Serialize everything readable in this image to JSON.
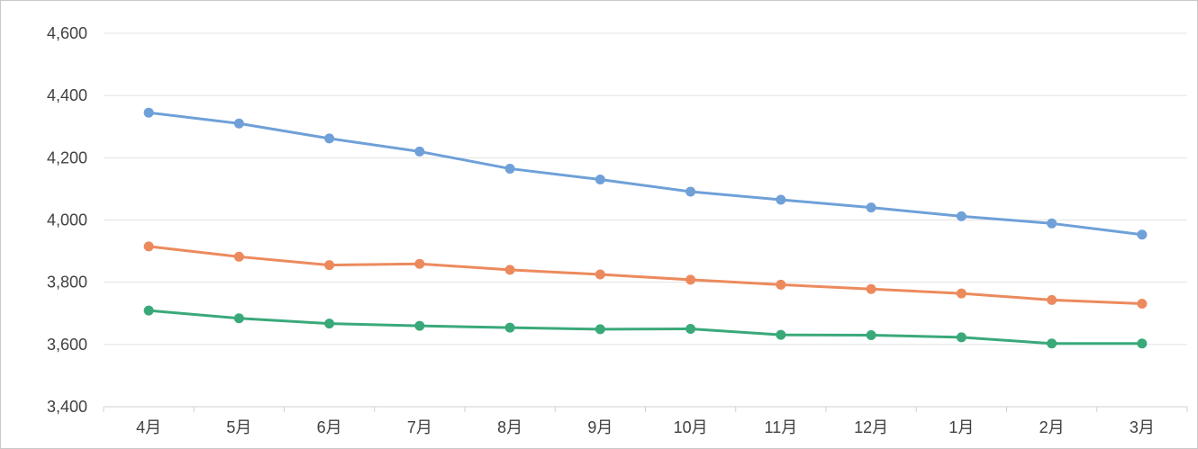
{
  "chart_data": {
    "type": "line",
    "title": "",
    "xlabel": "",
    "ylabel": "",
    "categories": [
      "4月",
      "5月",
      "6月",
      "7月",
      "8月",
      "9月",
      "10月",
      "11月",
      "12月",
      "1月",
      "2月",
      "3月"
    ],
    "ylim": [
      3400,
      4600
    ],
    "yticks": [
      3400,
      3600,
      3800,
      4000,
      4200,
      4400,
      4600
    ],
    "ytick_labels": [
      "3,400",
      "3,600",
      "3,800",
      "4,000",
      "4,200",
      "4,400",
      "4,600"
    ],
    "grid": true,
    "legend": "none",
    "series": [
      {
        "color": "#6fa0d8",
        "values": [
          4345,
          4310,
          4262,
          4220,
          4165,
          4130,
          4091,
          4065,
          4040,
          4012,
          3989,
          3953
        ]
      },
      {
        "color": "#ec8a5d",
        "values": [
          3915,
          3882,
          3855,
          3859,
          3840,
          3825,
          3808,
          3792,
          3778,
          3764,
          3743,
          3731
        ]
      },
      {
        "color": "#3aa97a",
        "values": [
          3709,
          3684,
          3667,
          3660,
          3654,
          3649,
          3650,
          3631,
          3630,
          3623,
          3603,
          3603
        ]
      }
    ]
  }
}
